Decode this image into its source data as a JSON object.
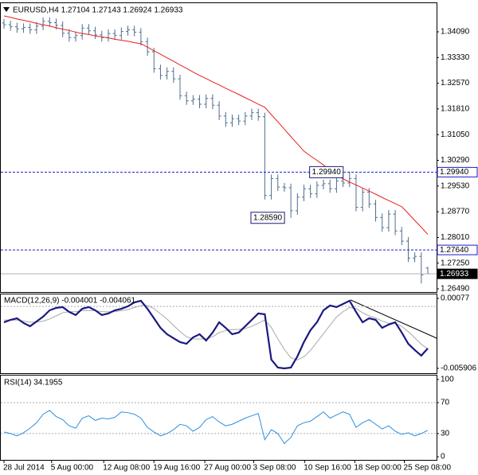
{
  "chart_data": [
    {
      "type": "ohlc",
      "title": "EURUSD,H4 1.27104 1.27143 1.26924 1.26933",
      "color": "#4f6f8f",
      "open": [
        1.3435,
        1.343,
        1.3424,
        1.3418,
        1.3422,
        1.3415,
        1.3426,
        1.344,
        1.3436,
        1.3428,
        1.3405,
        1.3392,
        1.3398,
        1.342,
        1.3412,
        1.34,
        1.3392,
        1.3404,
        1.3398,
        1.341,
        1.3415,
        1.3408,
        1.338,
        1.335,
        1.33,
        1.328,
        1.3292,
        1.327,
        1.322,
        1.3205,
        1.321,
        1.3195,
        1.3212,
        1.3192,
        1.316,
        1.314,
        1.3152,
        1.3145,
        1.316,
        1.317,
        1.3158,
        1.2925,
        1.2975,
        1.295,
        1.2948,
        1.288,
        1.292,
        1.2945,
        1.293,
        1.2955,
        1.296,
        1.2945,
        1.2968,
        1.2962,
        1.2975,
        1.289,
        1.2935,
        1.29,
        1.286,
        1.283,
        1.287,
        1.282,
        1.279,
        1.274,
        1.2745,
        1.27104
      ],
      "high": [
        1.3447,
        1.3442,
        1.3436,
        1.3434,
        1.3434,
        1.3438,
        1.3452,
        1.3452,
        1.3448,
        1.344,
        1.3417,
        1.341,
        1.3432,
        1.3432,
        1.3424,
        1.3412,
        1.3416,
        1.3416,
        1.3422,
        1.3427,
        1.3427,
        1.342,
        1.3392,
        1.3362,
        1.3312,
        1.3304,
        1.3304,
        1.3282,
        1.3232,
        1.3222,
        1.3222,
        1.3224,
        1.3224,
        1.3204,
        1.3172,
        1.3164,
        1.3164,
        1.3172,
        1.3182,
        1.3182,
        1.317,
        1.2987,
        1.2987,
        1.2962,
        1.296,
        1.2932,
        1.2957,
        1.2957,
        1.2967,
        1.2972,
        1.2972,
        1.298,
        1.298,
        1.2994,
        1.2987,
        1.2947,
        1.2947,
        1.2912,
        1.2872,
        1.2882,
        1.2882,
        1.2832,
        1.2802,
        1.2757,
        1.2757,
        1.27143
      ],
      "low": [
        1.3418,
        1.3412,
        1.3406,
        1.3406,
        1.3403,
        1.3403,
        1.3414,
        1.3424,
        1.3416,
        1.3393,
        1.338,
        1.338,
        1.3386,
        1.34,
        1.3388,
        1.338,
        1.338,
        1.3386,
        1.3386,
        1.3398,
        1.3396,
        1.3368,
        1.3338,
        1.3288,
        1.3268,
        1.3268,
        1.3258,
        1.3208,
        1.3193,
        1.3193,
        1.3183,
        1.3183,
        1.318,
        1.3148,
        1.3128,
        1.3128,
        1.3133,
        1.3133,
        1.3148,
        1.3146,
        1.2913,
        1.2913,
        1.2938,
        1.2936,
        1.2859,
        1.2868,
        1.2908,
        1.2918,
        1.2918,
        1.2943,
        1.2933,
        1.2933,
        1.295,
        1.295,
        1.2878,
        1.2878,
        1.2888,
        1.2848,
        1.2818,
        1.2818,
        1.2808,
        1.2778,
        1.2728,
        1.2728,
        1.2665,
        1.26924
      ],
      "close": [
        1.343,
        1.3424,
        1.3418,
        1.3422,
        1.3415,
        1.3426,
        1.344,
        1.3436,
        1.3428,
        1.3405,
        1.3392,
        1.3398,
        1.342,
        1.3412,
        1.34,
        1.3392,
        1.3404,
        1.3398,
        1.341,
        1.3415,
        1.3408,
        1.338,
        1.335,
        1.33,
        1.328,
        1.3292,
        1.327,
        1.322,
        1.3205,
        1.321,
        1.3195,
        1.3212,
        1.3192,
        1.316,
        1.314,
        1.3152,
        1.3145,
        1.316,
        1.317,
        1.3158,
        1.2925,
        1.2975,
        1.295,
        1.2948,
        1.288,
        1.292,
        1.2945,
        1.293,
        1.2955,
        1.296,
        1.2945,
        1.2968,
        1.2962,
        1.2975,
        1.289,
        1.2935,
        1.29,
        1.286,
        1.283,
        1.287,
        1.282,
        1.279,
        1.274,
        1.2745,
        1.269,
        1.26933
      ],
      "series": [
        {
          "color": "#e8201c",
          "values": [
            1.3456,
            1.3452,
            1.3447,
            1.3443,
            1.3439,
            1.3434,
            1.343,
            1.3426,
            1.3421,
            1.3417,
            1.3413,
            1.3408,
            1.3404,
            1.3401,
            1.3397,
            1.3394,
            1.3391,
            1.3387,
            1.3384,
            1.3381,
            1.3377,
            1.3374,
            1.3364,
            1.3353,
            1.3343,
            1.3332,
            1.3322,
            1.3311,
            1.3301,
            1.329,
            1.328,
            1.3271,
            1.3261,
            1.3252,
            1.3242,
            1.3233,
            1.3224,
            1.3214,
            1.3205,
            1.3195,
            1.3186,
            1.3164,
            1.3143,
            1.3121,
            1.3099,
            1.3078,
            1.3056,
            1.3042,
            1.3029,
            1.3015,
            1.3001,
            1.2988,
            1.2974,
            1.2965,
            1.2956,
            1.2947,
            1.2938,
            1.2929,
            1.2919,
            1.291,
            1.2901,
            1.2892,
            1.2872,
            1.2851,
            1.2831,
            1.281
          ]
        }
      ],
      "ylim": [
        1.26396,
        1.34843
      ],
      "yticks": [
        {
          "value": 1.3409,
          "label": "1.34090"
        },
        {
          "value": 1.3333,
          "label": "1.33330"
        },
        {
          "value": 1.3257,
          "label": "1.32570"
        },
        {
          "value": 1.3181,
          "label": "1.31810"
        },
        {
          "value": 1.3105,
          "label": "1.31050"
        },
        {
          "value": 1.3029,
          "label": "1.30290"
        },
        {
          "value": 1.2953,
          "label": "1.29530"
        },
        {
          "value": 1.2877,
          "label": "1.28770"
        },
        {
          "value": 1.2801,
          "label": "1.28010"
        },
        {
          "value": 1.2725,
          "label": "1.27250"
        },
        {
          "value": 1.2649,
          "label": "1.26490"
        }
      ],
      "hlines": [
        {
          "value": 1.2994,
          "label": "1.29940",
          "color": "#1a1acc",
          "style": "dashed"
        },
        {
          "value": 1.2764,
          "label": "1.27640",
          "color": "#1a1acc",
          "style": "dashed"
        },
        {
          "value": 1.26933,
          "label": "1.26933",
          "color": "#b0b0b0",
          "style": "solid"
        }
      ],
      "annotations": [
        {
          "value": 1.2994,
          "label": "1.29940"
        },
        {
          "value": 1.2859,
          "label": "1.28590"
        }
      ]
    },
    {
      "type": "line",
      "title": "MACD(12,26,9) -0.004001 -0.004061",
      "series": [
        {
          "color": "#1a1a80",
          "values": [
            -0.00151,
            -0.00128,
            -0.00113,
            -0.00158,
            -0.00189,
            -0.00143,
            -0.00098,
            -0.00037,
            -0.00014,
            -6e-05,
            -0.00052,
            -0.00082,
            -0.00022,
            -6e-05,
            -0.00037,
            -0.00082,
            -0.00067,
            -0.00037,
            -0.00022,
            1e-05,
            0.00039,
            0.00054,
            -0.00022,
            -0.00113,
            -0.00204,
            -0.00265,
            -0.00303,
            -0.0034,
            -0.00356,
            -0.00295,
            -0.00265,
            -0.00325,
            -0.00249,
            -0.00151,
            -0.00204,
            -0.00265,
            -0.00249,
            -0.00189,
            -0.00128,
            -0.00067,
            -0.00075,
            -0.00507,
            -0.00583,
            -0.00591,
            -0.00583,
            -0.00477,
            -0.0034,
            -0.00227,
            -0.00151,
            -0.00037,
            9e-05,
            -6e-05,
            0.00024,
            0.00054,
            -0.00052,
            -0.00151,
            -0.00113,
            -0.00128,
            -0.00204,
            -0.00173,
            -0.00151,
            -0.00249,
            -0.00356,
            -0.00416,
            -0.00469,
            -0.004001
          ]
        },
        {
          "color": "#a8a8a8",
          "values": [
            -0.0013,
            -0.0013,
            -0.0013,
            -0.0014,
            -0.0015,
            -0.0015,
            -0.0014,
            -0.0012,
            -0.0009,
            -0.0006,
            -0.0005,
            -0.0005,
            -0.0004,
            -0.0004,
            -0.0004,
            -0.0005,
            -0.0005,
            -0.0005,
            -0.0004,
            -0.0003,
            -0.0001,
            0.0001,
            0.0001,
            -0.0002,
            -0.0007,
            -0.0012,
            -0.0018,
            -0.0024,
            -0.0029,
            -0.0031,
            -0.0031,
            -0.0031,
            -0.0029,
            -0.0025,
            -0.0023,
            -0.0022,
            -0.0022,
            -0.0021,
            -0.0019,
            -0.0016,
            -0.0013,
            -0.002,
            -0.0031,
            -0.0041,
            -0.0049,
            -0.0051,
            -0.0048,
            -0.0042,
            -0.0034,
            -0.0026,
            -0.0018,
            -0.001,
            -0.0005,
            -0.0001,
            -0.0002,
            -0.0006,
            -0.0009,
            -0.0011,
            -0.0014,
            -0.0016,
            -0.0016,
            -0.0019,
            -0.0024,
            -0.003,
            -0.0036,
            -0.004061
          ]
        }
      ],
      "ylim": [
        -0.00629,
        0.00115
      ],
      "yticks": [
        0.00077,
        -0.005906
      ],
      "levels": [
        0
      ]
    },
    {
      "type": "line",
      "title": "RSI(14) 34.1955",
      "series": [
        {
          "color": "#2a8fe0",
          "values": [
            32,
            30,
            27,
            31,
            37,
            44,
            55,
            60,
            52,
            48,
            40,
            37,
            50,
            53,
            47,
            50,
            49,
            51,
            58,
            57,
            55,
            50,
            38,
            32,
            27,
            30,
            35,
            42,
            40,
            33,
            38,
            48,
            52,
            45,
            40,
            42,
            46,
            50,
            53,
            56,
            22,
            35,
            30,
            17,
            25,
            40,
            44,
            46,
            52,
            58,
            50,
            54,
            58,
            55,
            38,
            44,
            48,
            42,
            36,
            40,
            33,
            29,
            31,
            27,
            30,
            34.1955
          ]
        }
      ],
      "ylim": [
        -4.1,
        105.1
      ],
      "yticks": [
        100,
        70,
        30,
        0
      ],
      "levels": [
        70,
        30
      ],
      "xticks": [
        {
          "value": 0,
          "label": "28 Jul 2014"
        },
        {
          "value": 7.3,
          "label": "5 Aug 00:00"
        },
        {
          "value": 15.3,
          "label": "12 Aug 08:00"
        },
        {
          "value": 23,
          "label": "19 Aug 16:00"
        },
        {
          "value": 30.8,
          "label": "27 Aug 00:00"
        },
        {
          "value": 38.3,
          "label": "3 Sep 08:00"
        },
        {
          "value": 46.1,
          "label": "10 Sep 16:00"
        },
        {
          "value": 53.8,
          "label": "18 Sep 00:00"
        },
        {
          "value": 61.4,
          "label": "25 Sep 08:00"
        }
      ]
    }
  ]
}
